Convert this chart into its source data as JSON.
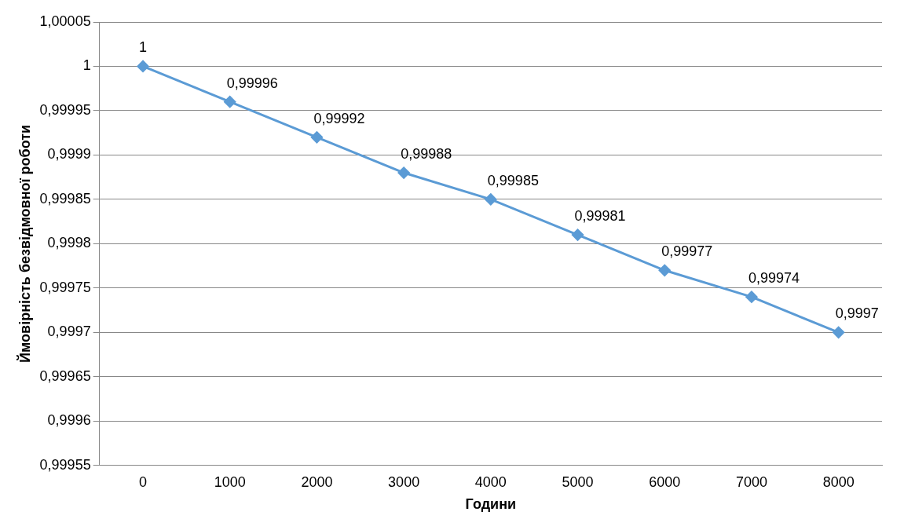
{
  "chart_data": {
    "type": "line",
    "xlabel": "Години",
    "ylabel": "Ймовірність безвідмовної роботи",
    "categories": [
      "0",
      "1000",
      "2000",
      "3000",
      "4000",
      "5000",
      "6000",
      "7000",
      "8000"
    ],
    "series": [
      {
        "color": "#5b9bd5",
        "values": [
          1,
          0.99996,
          0.99992,
          0.99988,
          0.99985,
          0.99981,
          0.99977,
          0.99974,
          0.9997
        ],
        "value_labels": [
          "1",
          "0,99996",
          "0,99992",
          "0,99988",
          "0,99985",
          "0,99981",
          "0,99977",
          "0,99974",
          "0,9997"
        ]
      }
    ],
    "ylim": [
      0.99955,
      1.00005
    ],
    "yticks": [
      {
        "value": 0.99955,
        "label": "0,99955"
      },
      {
        "value": 0.9996,
        "label": "0,9996"
      },
      {
        "value": 0.99965,
        "label": "0,99965"
      },
      {
        "value": 0.9997,
        "label": "0,9997"
      },
      {
        "value": 0.99975,
        "label": "0,99975"
      },
      {
        "value": 0.9998,
        "label": "0,9998"
      },
      {
        "value": 0.99985,
        "label": "0,99985"
      },
      {
        "value": 0.9999,
        "label": "0,9999"
      },
      {
        "value": 0.99995,
        "label": "0,99995"
      },
      {
        "value": 1,
        "label": "1"
      },
      {
        "value": 1.00005,
        "label": "1,00005"
      }
    ],
    "grid": "y",
    "legend": false,
    "marker": "diamond",
    "line_style": "solid"
  }
}
